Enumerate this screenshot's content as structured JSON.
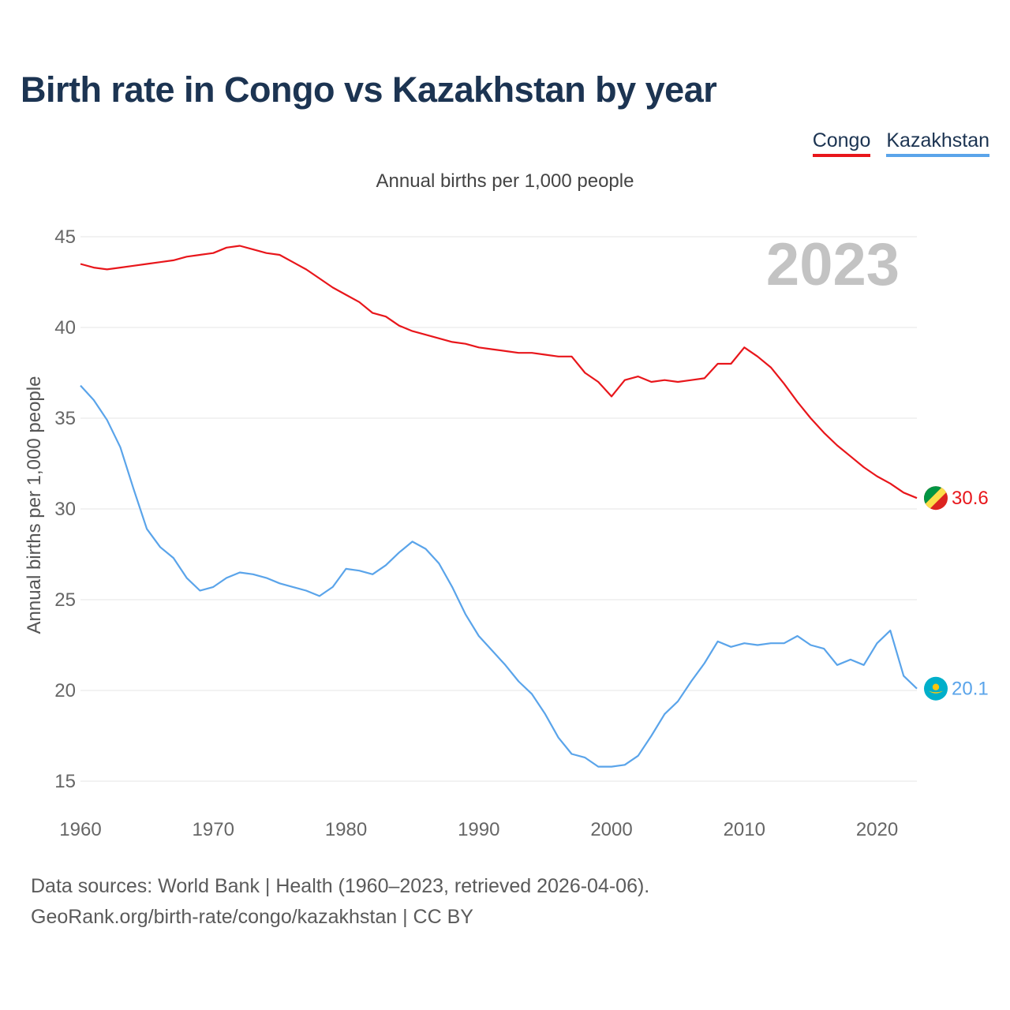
{
  "title": "Birth rate in Congo vs Kazakhstan by year",
  "subtitle": "Annual births per 1,000 people",
  "year_watermark": "2023",
  "source_line1": "Data sources: World Bank | Health (1960–2023, retrieved 2026-04-06).",
  "source_line2": "GeoRank.org/birth-rate/congo/kazakhstan | CC BY",
  "colors": {
    "congo": "#e8161b",
    "kazakhstan": "#5aa4ea",
    "grid": "#e6e6e6"
  },
  "legend": [
    {
      "label": "Congo",
      "color": "#e8161b"
    },
    {
      "label": "Kazakhstan",
      "color": "#5aa4ea"
    }
  ],
  "chart_data": {
    "type": "line",
    "title": "Birth rate in Congo vs Kazakhstan by year",
    "xlabel": "",
    "ylabel": "Annual births per 1,000 people",
    "xlim": [
      1960,
      2023
    ],
    "ylim": [
      15,
      45
    ],
    "x_ticks": [
      1960,
      1970,
      1980,
      1990,
      2000,
      2010,
      2020
    ],
    "y_ticks": [
      15,
      20,
      25,
      30,
      35,
      40,
      45
    ],
    "grid": true,
    "legend_position": "top-right",
    "x": [
      1960,
      1961,
      1962,
      1963,
      1964,
      1965,
      1966,
      1967,
      1968,
      1969,
      1970,
      1971,
      1972,
      1973,
      1974,
      1975,
      1976,
      1977,
      1978,
      1979,
      1980,
      1981,
      1982,
      1983,
      1984,
      1985,
      1986,
      1987,
      1988,
      1989,
      1990,
      1991,
      1992,
      1993,
      1994,
      1995,
      1996,
      1997,
      1998,
      1999,
      2000,
      2001,
      2002,
      2003,
      2004,
      2005,
      2006,
      2007,
      2008,
      2009,
      2010,
      2011,
      2012,
      2013,
      2014,
      2015,
      2016,
      2017,
      2018,
      2019,
      2020,
      2021,
      2022,
      2023
    ],
    "series": [
      {
        "name": "Congo",
        "end_label": "30.6",
        "values": [
          43.5,
          43.3,
          43.2,
          43.3,
          43.4,
          43.5,
          43.6,
          43.7,
          43.9,
          44.0,
          44.1,
          44.4,
          44.5,
          44.3,
          44.1,
          44.0,
          43.6,
          43.2,
          42.7,
          42.2,
          41.8,
          41.4,
          40.8,
          40.6,
          40.1,
          39.8,
          39.6,
          39.4,
          39.2,
          39.1,
          38.9,
          38.8,
          38.7,
          38.6,
          38.6,
          38.5,
          38.4,
          38.4,
          37.5,
          37.0,
          36.2,
          37.1,
          37.3,
          37.0,
          37.1,
          37.0,
          37.1,
          37.2,
          38.0,
          38.0,
          38.9,
          38.4,
          37.8,
          36.9,
          35.9,
          35.0,
          34.2,
          33.5,
          32.9,
          32.3,
          31.8,
          31.4,
          30.9,
          30.6
        ]
      },
      {
        "name": "Kazakhstan",
        "end_label": "20.1",
        "values": [
          36.8,
          36.0,
          34.9,
          33.4,
          31.1,
          28.9,
          27.9,
          27.3,
          26.2,
          25.5,
          25.7,
          26.2,
          26.5,
          26.4,
          26.2,
          25.9,
          25.7,
          25.5,
          25.2,
          25.7,
          26.7,
          26.6,
          26.4,
          26.9,
          27.6,
          28.2,
          27.8,
          27.0,
          25.7,
          24.2,
          23.0,
          22.2,
          21.4,
          20.5,
          19.8,
          18.7,
          17.4,
          16.5,
          16.3,
          15.8,
          15.8,
          15.9,
          16.4,
          17.5,
          18.7,
          19.4,
          20.5,
          21.5,
          22.7,
          22.4,
          22.6,
          22.5,
          22.6,
          22.6,
          23.0,
          22.5,
          22.3,
          21.4,
          21.7,
          21.4,
          22.6,
          23.3,
          20.8,
          20.1
        ]
      }
    ]
  }
}
